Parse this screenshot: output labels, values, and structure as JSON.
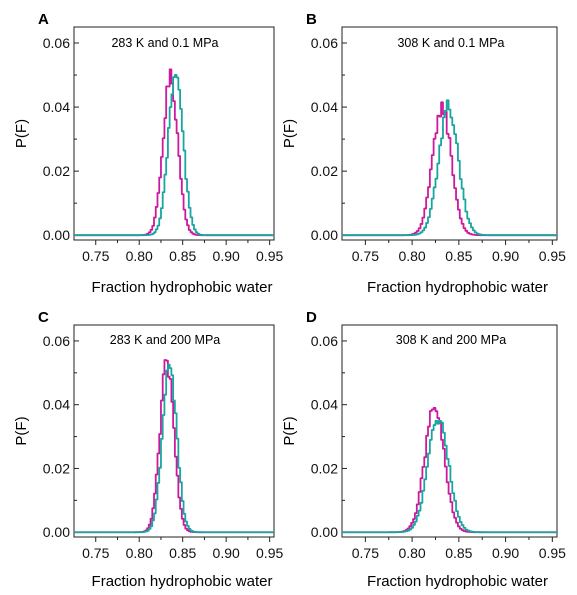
{
  "chart_data": [
    {
      "panel": "A",
      "type": "line",
      "annotation": "283 K and 0.1 MPa",
      "xlabel": "Fraction hydrophobic water",
      "ylabel": "P(F)",
      "xlim": [
        0.725,
        0.955
      ],
      "ylim": [
        -0.0015,
        0.065
      ],
      "xticks": [
        "0.75",
        "0.80",
        "0.85",
        "0.90",
        "0.95"
      ],
      "yticks": [
        "0.00",
        "0.02",
        "0.04",
        "0.06"
      ],
      "series": [
        {
          "color": "#cc1a9e",
          "center": 0.835,
          "sigma": 0.0085,
          "peak": 0.049
        },
        {
          "color": "#19a6a0",
          "center": 0.841,
          "sigma": 0.0085,
          "peak": 0.05
        }
      ]
    },
    {
      "panel": "B",
      "type": "line",
      "annotation": "308 K and 0.1 MPa",
      "xlabel": "Fraction hydrophobic water",
      "ylabel": "P(F)",
      "xlim": [
        0.725,
        0.955
      ],
      "ylim": [
        -0.0015,
        0.065
      ],
      "xticks": [
        "0.75",
        "0.80",
        "0.85",
        "0.90",
        "0.95"
      ],
      "yticks": [
        "0.00",
        "0.02",
        "0.04",
        "0.06"
      ],
      "series": [
        {
          "color": "#cc1a9e",
          "center": 0.831,
          "sigma": 0.01,
          "peak": 0.04
        },
        {
          "color": "#19a6a0",
          "center": 0.838,
          "sigma": 0.0105,
          "peak": 0.04
        }
      ]
    },
    {
      "panel": "C",
      "type": "line",
      "annotation": "283 K and 200 MPa",
      "xlabel": "Fraction hydrophobic water",
      "ylabel": "P(F)",
      "xlim": [
        0.725,
        0.955
      ],
      "ylim": [
        -0.0015,
        0.065
      ],
      "xticks": [
        "0.75",
        "0.80",
        "0.85",
        "0.90",
        "0.95"
      ],
      "yticks": [
        "0.00",
        "0.02",
        "0.04",
        "0.06"
      ],
      "series": [
        {
          "color": "#cc1a9e",
          "center": 0.831,
          "sigma": 0.008,
          "peak": 0.053
        },
        {
          "color": "#19a6a0",
          "center": 0.834,
          "sigma": 0.0082,
          "peak": 0.052
        }
      ]
    },
    {
      "panel": "D",
      "type": "line",
      "annotation": "308 K and 200 MPa",
      "xlabel": "Fraction hydrophobic water",
      "ylabel": "P(F)",
      "xlim": [
        0.725,
        0.955
      ],
      "ylim": [
        -0.0015,
        0.065
      ],
      "xticks": [
        "0.75",
        "0.80",
        "0.85",
        "0.90",
        "0.95"
      ],
      "yticks": [
        "0.00",
        "0.02",
        "0.04",
        "0.06"
      ],
      "series": [
        {
          "color": "#cc1a9e",
          "center": 0.823,
          "sigma": 0.0105,
          "peak": 0.039
        },
        {
          "color": "#19a6a0",
          "center": 0.827,
          "sigma": 0.011,
          "peak": 0.036
        }
      ]
    }
  ]
}
